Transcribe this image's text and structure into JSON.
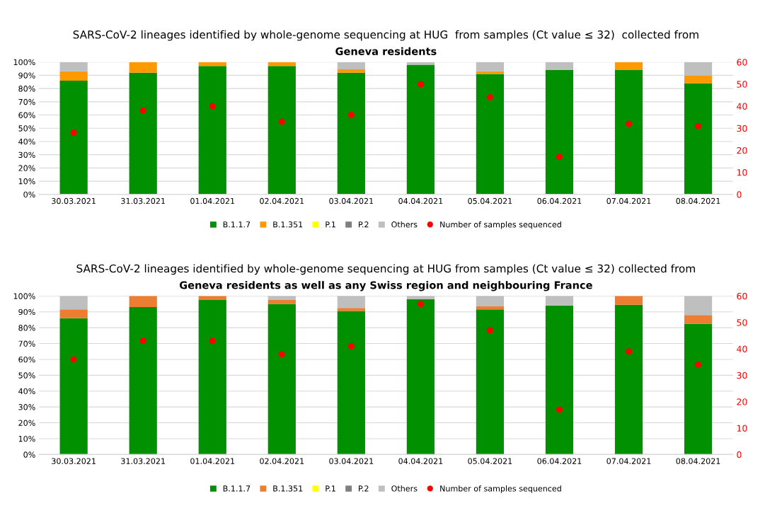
{
  "chart_data": [
    {
      "type": "bar",
      "title": "SARS-CoV-2 lineages identified by whole-genome sequencing at HUG  from samples (Ct value ≤ 32)  collected from",
      "subtitle": "Geneva residents",
      "categories": [
        "30.03.2021",
        "31.03.2021",
        "01.04.2021",
        "02.04.2021",
        "03.04.2021",
        "04.04.2021",
        "05.04.2021",
        "06.04.2021",
        "07.04.2021",
        "08.04.2021"
      ],
      "stacked": true,
      "ylim": [
        0,
        100
      ],
      "yticks": [
        {
          "value": 0,
          "label": "0%"
        },
        {
          "value": 10,
          "label": "10%"
        },
        {
          "value": 20,
          "label": "20%"
        },
        {
          "value": 30,
          "label": "30%"
        },
        {
          "value": 40,
          "label": "40%"
        },
        {
          "value": 50,
          "label": "50%"
        },
        {
          "value": 60,
          "label": "60%"
        },
        {
          "value": 70,
          "label": "70%"
        },
        {
          "value": 80,
          "label": "80%"
        },
        {
          "value": 90,
          "label": "90%"
        },
        {
          "value": 100,
          "label": "100%"
        }
      ],
      "y2lim": [
        0,
        60
      ],
      "y2ticks": [
        0,
        10,
        20,
        30,
        40,
        50,
        60
      ],
      "grid": "y",
      "legend": "bottom",
      "series": [
        {
          "name": "B.1.1.7",
          "color": "#009000",
          "values": [
            86,
            92,
            97,
            97,
            92,
            98,
            91,
            94,
            94,
            84
          ]
        },
        {
          "name": "B.1.351",
          "color": "#ff9900",
          "values": [
            7,
            8,
            3,
            3,
            2.5,
            0,
            2,
            0,
            6,
            6
          ]
        },
        {
          "name": "P.1",
          "color": "#ffff00",
          "values": [
            0,
            0,
            0,
            0,
            0,
            0,
            0,
            0,
            0,
            0
          ]
        },
        {
          "name": "P.2",
          "color": "#7f7f7f",
          "values": [
            0,
            0,
            0,
            0,
            0,
            0,
            0,
            0,
            0,
            0
          ]
        },
        {
          "name": "Others",
          "color": "#bfbfbf",
          "values": [
            7,
            0,
            0,
            0,
            5.5,
            2,
            7,
            6,
            0,
            10
          ]
        },
        {
          "name": "Number of samples sequenced",
          "type": "scatter",
          "axis": "y2",
          "color": "#ff0000",
          "marker": "circle",
          "x": [
            "30.03.2021",
            "31.03.2021",
            "01.04.2021",
            "02.04.2021",
            "03.04.2021",
            "04.04.2021",
            "05.04.2021",
            "06.04.2021",
            "07.04.2021",
            "08.04.2021"
          ],
          "values": [
            28,
            38,
            40,
            33,
            36,
            50,
            44,
            17,
            32,
            31
          ]
        }
      ]
    },
    {
      "type": "bar",
      "title": "SARS-CoV-2 lineages identified by whole-genome sequencing at HUG from samples (Ct value ≤ 32) collected from",
      "subtitle": "Geneva residents as well as any Swiss region and neighbouring France",
      "categories": [
        "30.03.2021",
        "31.03.2021",
        "01.04.2021",
        "02.04.2021",
        "03.04.2021",
        "04.04.2021",
        "05.04.2021",
        "06.04.2021",
        "07.04.2021",
        "08.04.2021"
      ],
      "stacked": true,
      "ylim": [
        0,
        100
      ],
      "yticks": [
        {
          "value": 0,
          "label": "0%"
        },
        {
          "value": 10,
          "label": "10%"
        },
        {
          "value": 20,
          "label": "20%"
        },
        {
          "value": 30,
          "label": "30%"
        },
        {
          "value": 40,
          "label": "40%"
        },
        {
          "value": 50,
          "label": "50%"
        },
        {
          "value": 60,
          "label": "60%"
        },
        {
          "value": 70,
          "label": "70%"
        },
        {
          "value": 80,
          "label": "80%"
        },
        {
          "value": 90,
          "label": "90%"
        },
        {
          "value": 100,
          "label": "100%"
        }
      ],
      "y2lim": [
        0,
        60
      ],
      "y2ticks": [
        0,
        10,
        20,
        30,
        40,
        50,
        60
      ],
      "grid": "y",
      "legend": "bottom",
      "series": [
        {
          "name": "B.1.1.7",
          "color": "#009000",
          "values": [
            86,
            93,
            97.5,
            95,
            90.5,
            98,
            91.5,
            94,
            94.5,
            82.5
          ]
        },
        {
          "name": "B.1.351",
          "color": "#ed7d31",
          "values": [
            5.5,
            7,
            2.5,
            2.5,
            2,
            0,
            2,
            0,
            5.5,
            5.5
          ]
        },
        {
          "name": "P.1",
          "color": "#ffff00",
          "values": [
            0,
            0,
            0,
            0,
            0,
            0,
            0,
            0,
            0,
            0
          ]
        },
        {
          "name": "P.2",
          "color": "#7f7f7f",
          "values": [
            0,
            0,
            0,
            0,
            0,
            0,
            0,
            0,
            0,
            0
          ]
        },
        {
          "name": "Others",
          "color": "#bfbfbf",
          "values": [
            8.5,
            0,
            0,
            2.5,
            7.5,
            2,
            6.5,
            6,
            0,
            12
          ]
        },
        {
          "name": "Number of samples sequenced",
          "type": "scatter",
          "axis": "y2",
          "color": "#ff0000",
          "marker": "circle",
          "x": [
            "30.03.2021",
            "31.03.2021",
            "01.04.2021",
            "02.04.2021",
            "03.04.2021",
            "04.04.2021",
            "05.04.2021",
            "06.04.2021",
            "07.04.2021",
            "08.04.2021"
          ],
          "values": [
            36,
            43,
            43,
            38,
            41,
            57,
            47,
            17,
            39,
            34
          ]
        }
      ]
    }
  ]
}
